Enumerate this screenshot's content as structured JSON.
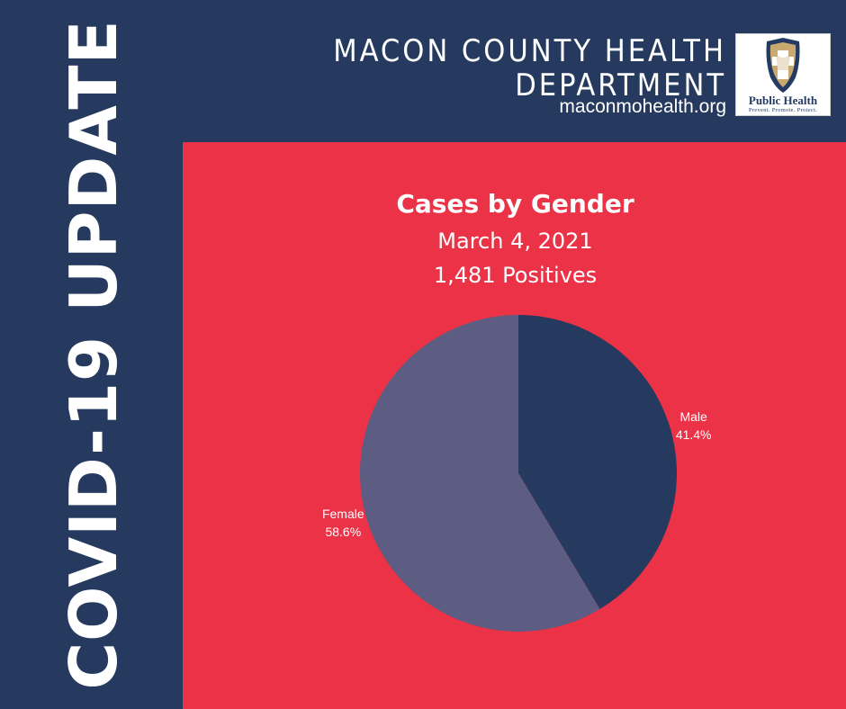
{
  "side_title": "COVID-19 UPDATE",
  "header": {
    "org_line1": "MACON COUNTY HEALTH",
    "org_line2": "DEPARTMENT",
    "url": "maconmohealth.org"
  },
  "logo": {
    "wordmark": "Public Health",
    "tagline": "Prevent. Promote. Protect."
  },
  "colors": {
    "background": "#253a5e",
    "panel": "#ec3247",
    "male": "#253a5e",
    "female": "#5d5c82"
  },
  "chart_data": {
    "type": "pie",
    "title": "Cases by Gender",
    "subtitle_lines": [
      "March 4, 2021",
      "1,481 Positives"
    ],
    "slices": [
      {
        "label": "Male",
        "value": 41.4,
        "display": "41.4%"
      },
      {
        "label": "Female",
        "value": 58.6,
        "display": "58.6%"
      }
    ]
  }
}
